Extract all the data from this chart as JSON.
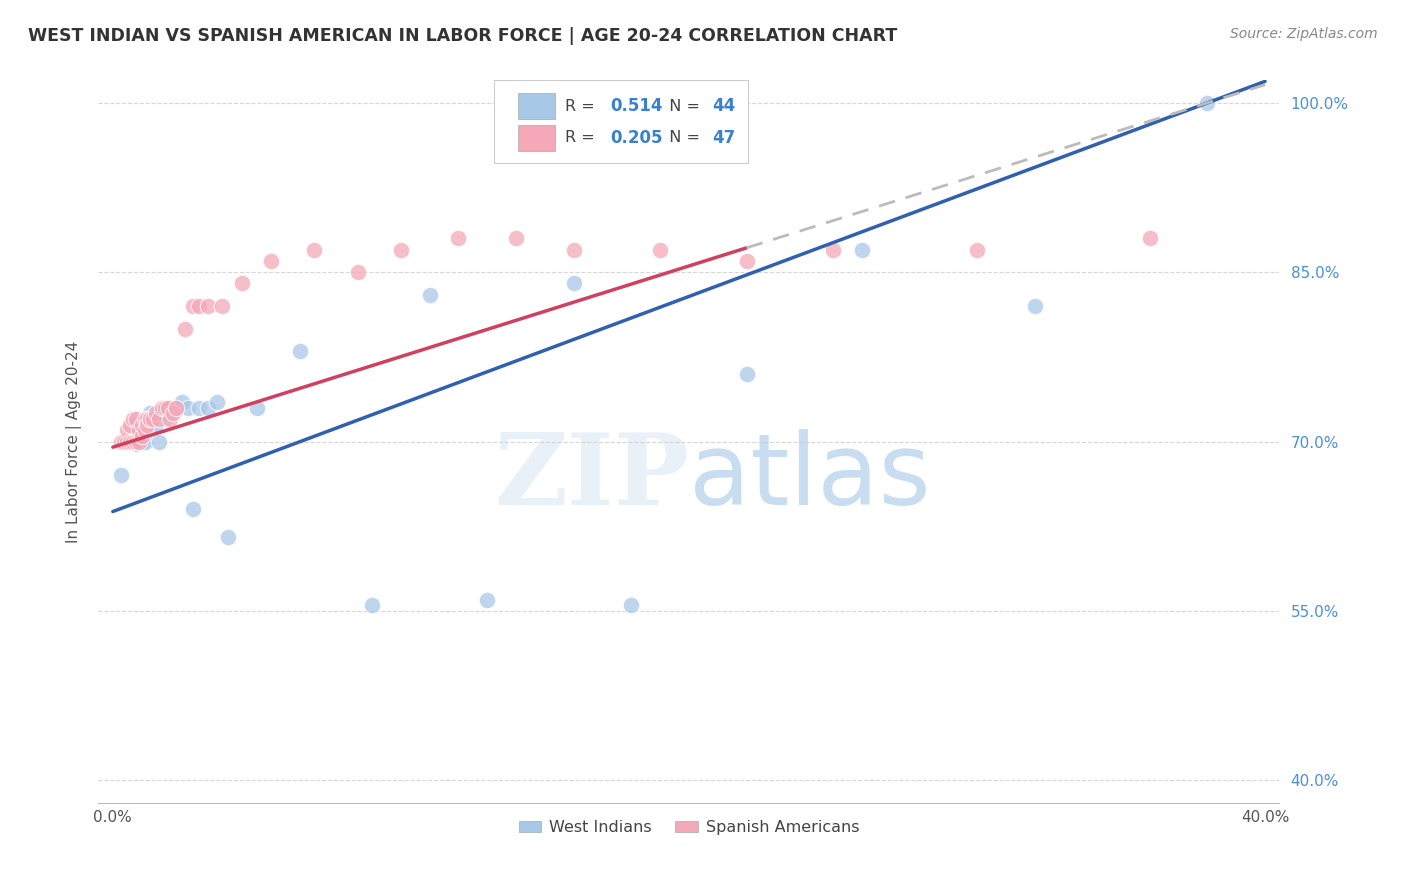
{
  "title": "WEST INDIAN VS SPANISH AMERICAN IN LABOR FORCE | AGE 20-24 CORRELATION CHART",
  "source": "Source: ZipAtlas.com",
  "ylabel": "In Labor Force | Age 20-24",
  "xlim": [
    -0.005,
    0.405
  ],
  "ylim": [
    0.38,
    1.02
  ],
  "xticks": [
    0.0,
    0.05,
    0.1,
    0.15,
    0.2,
    0.25,
    0.3,
    0.35,
    0.4
  ],
  "xticklabels": [
    "0.0%",
    "",
    "",
    "",
    "",
    "",
    "",
    "",
    "40.0%"
  ],
  "yticks": [
    0.4,
    0.55,
    0.7,
    0.85,
    1.0
  ],
  "yticklabels": [
    "40.0%",
    "55.0%",
    "70.0%",
    "85.0%",
    "100.0%"
  ],
  "legend_blue_r": "0.514",
  "legend_blue_n": "44",
  "legend_pink_r": "0.205",
  "legend_pink_n": "47",
  "blue_color": "#a8c8e8",
  "pink_color": "#f4a8b8",
  "blue_line_color": "#3060b0",
  "pink_line_color": "#d04060",
  "blue_x": [
    0.003,
    0.004,
    0.005,
    0.006,
    0.006,
    0.007,
    0.007,
    0.008,
    0.008,
    0.009,
    0.009,
    0.01,
    0.01,
    0.011,
    0.011,
    0.012,
    0.013,
    0.013,
    0.014,
    0.015,
    0.016,
    0.017,
    0.018,
    0.019,
    0.02,
    0.022,
    0.024,
    0.026,
    0.028,
    0.03,
    0.033,
    0.036,
    0.04,
    0.05,
    0.065,
    0.09,
    0.11,
    0.13,
    0.16,
    0.18,
    0.22,
    0.26,
    0.32,
    0.38
  ],
  "blue_y": [
    0.67,
    0.7,
    0.7,
    0.7,
    0.702,
    0.7,
    0.705,
    0.7,
    0.698,
    0.7,
    0.7,
    0.7,
    0.72,
    0.7,
    0.71,
    0.72,
    0.725,
    0.715,
    0.72,
    0.715,
    0.7,
    0.725,
    0.72,
    0.725,
    0.73,
    0.73,
    0.735,
    0.73,
    0.64,
    0.73,
    0.73,
    0.735,
    0.615,
    0.73,
    0.78,
    0.555,
    0.83,
    0.56,
    0.84,
    0.555,
    0.76,
    0.87,
    0.82,
    1.0
  ],
  "pink_x": [
    0.003,
    0.004,
    0.005,
    0.005,
    0.006,
    0.006,
    0.007,
    0.007,
    0.008,
    0.008,
    0.009,
    0.009,
    0.01,
    0.01,
    0.011,
    0.011,
    0.012,
    0.012,
    0.013,
    0.013,
    0.014,
    0.015,
    0.016,
    0.017,
    0.018,
    0.019,
    0.02,
    0.021,
    0.022,
    0.025,
    0.028,
    0.03,
    0.033,
    0.038,
    0.045,
    0.055,
    0.07,
    0.085,
    0.1,
    0.12,
    0.14,
    0.16,
    0.19,
    0.22,
    0.25,
    0.3,
    0.36
  ],
  "pink_y": [
    0.7,
    0.7,
    0.7,
    0.71,
    0.7,
    0.715,
    0.7,
    0.72,
    0.7,
    0.72,
    0.7,
    0.71,
    0.705,
    0.715,
    0.71,
    0.72,
    0.72,
    0.715,
    0.72,
    0.72,
    0.72,
    0.725,
    0.72,
    0.73,
    0.73,
    0.73,
    0.72,
    0.725,
    0.73,
    0.8,
    0.82,
    0.82,
    0.82,
    0.82,
    0.84,
    0.86,
    0.87,
    0.85,
    0.87,
    0.88,
    0.88,
    0.87,
    0.87,
    0.86,
    0.87,
    0.87,
    0.88
  ]
}
